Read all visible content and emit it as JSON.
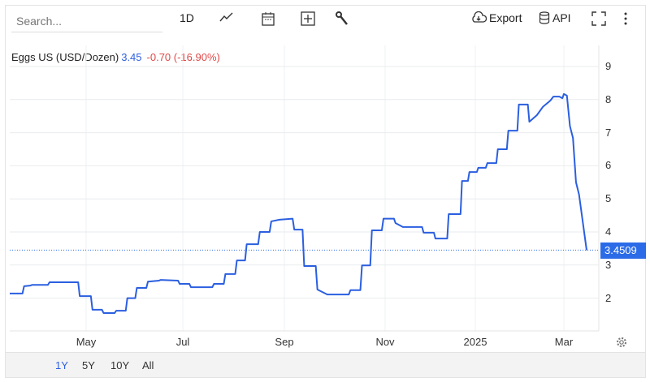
{
  "toolbar": {
    "search_placeholder": "Search...",
    "interval": "1D",
    "export_label": "Export",
    "api_label": "API",
    "icons": [
      "line-chart-icon",
      "calendar-icon",
      "add-compare-icon",
      "wrench-icon",
      "cloud-download-icon",
      "database-icon",
      "fullscreen-icon",
      "more-vert-icon"
    ]
  },
  "legend": {
    "name": "Eggs US (USD/Dozen)",
    "value": "3.45",
    "change": "-0.70 (-16.90%)"
  },
  "price_label": "3.4509",
  "ranges": [
    {
      "label": "1Y",
      "active": true
    },
    {
      "label": "5Y"
    },
    {
      "label": "10Y"
    },
    {
      "label": "All"
    }
  ],
  "colors": {
    "line": "#2b5fe0",
    "change": "#e04848",
    "price_tag": "#2b6be8"
  },
  "chart_data": {
    "type": "line",
    "series": [
      {
        "name": "Eggs US (USD/Dozen)",
        "points": [
          [
            "2024-03-14",
            2.14
          ],
          [
            "2024-03-22",
            2.14
          ],
          [
            "2024-03-23",
            2.36
          ],
          [
            "2024-03-27",
            2.38
          ],
          [
            "2024-03-28",
            2.4
          ],
          [
            "2024-04-07",
            2.4
          ],
          [
            "2024-04-08",
            2.48
          ],
          [
            "2024-04-26",
            2.48
          ],
          [
            "2024-04-27",
            2.06
          ],
          [
            "2024-05-04",
            2.06
          ],
          [
            "2024-05-05",
            1.65
          ],
          [
            "2024-05-11",
            1.65
          ],
          [
            "2024-05-12",
            1.55
          ],
          [
            "2024-05-19",
            1.55
          ],
          [
            "2024-05-20",
            1.62
          ],
          [
            "2024-05-26",
            1.62
          ],
          [
            "2024-05-27",
            2.0
          ],
          [
            "2024-06-01",
            2.0
          ],
          [
            "2024-06-02",
            2.31
          ],
          [
            "2024-06-08",
            2.31
          ],
          [
            "2024-06-09",
            2.5
          ],
          [
            "2024-06-16",
            2.53
          ],
          [
            "2024-06-17",
            2.55
          ],
          [
            "2024-06-28",
            2.53
          ],
          [
            "2024-06-29",
            2.43
          ],
          [
            "2024-07-05",
            2.43
          ],
          [
            "2024-07-06",
            2.33
          ],
          [
            "2024-07-19",
            2.33
          ],
          [
            "2024-07-20",
            2.43
          ],
          [
            "2024-07-26",
            2.43
          ],
          [
            "2024-07-27",
            2.73
          ],
          [
            "2024-08-02",
            2.73
          ],
          [
            "2024-08-03",
            3.14
          ],
          [
            "2024-08-08",
            3.14
          ],
          [
            "2024-08-09",
            3.63
          ],
          [
            "2024-08-16",
            3.63
          ],
          [
            "2024-08-17",
            4.0
          ],
          [
            "2024-08-23",
            4.0
          ],
          [
            "2024-08-24",
            4.32
          ],
          [
            "2024-08-29",
            4.37
          ],
          [
            "2024-09-06",
            4.4
          ],
          [
            "2024-09-07",
            4.07
          ],
          [
            "2024-09-12",
            4.07
          ],
          [
            "2024-09-13",
            2.97
          ],
          [
            "2024-09-20",
            2.97
          ],
          [
            "2024-09-21",
            2.26
          ],
          [
            "2024-09-27",
            2.11
          ],
          [
            "2024-10-10",
            2.11
          ],
          [
            "2024-10-11",
            2.24
          ],
          [
            "2024-10-17",
            2.24
          ],
          [
            "2024-10-18",
            2.99
          ],
          [
            "2024-10-23",
            2.99
          ],
          [
            "2024-10-24",
            4.05
          ],
          [
            "2024-10-30",
            4.05
          ],
          [
            "2024-10-31",
            4.4
          ],
          [
            "2024-11-07",
            4.4
          ],
          [
            "2024-11-08",
            4.27
          ],
          [
            "2024-11-13",
            4.15
          ],
          [
            "2024-11-26",
            4.15
          ],
          [
            "2024-11-27",
            3.98
          ],
          [
            "2024-12-04",
            3.98
          ],
          [
            "2024-12-05",
            3.8
          ],
          [
            "2024-12-13",
            3.8
          ],
          [
            "2024-12-14",
            4.54
          ],
          [
            "2024-12-22",
            4.54
          ],
          [
            "2024-12-23",
            5.54
          ],
          [
            "2024-12-27",
            5.54
          ],
          [
            "2024-12-28",
            5.81
          ],
          [
            "2025-01-02",
            5.81
          ],
          [
            "2025-01-03",
            5.94
          ],
          [
            "2025-01-08",
            5.94
          ],
          [
            "2025-01-09",
            6.08
          ],
          [
            "2025-01-15",
            6.08
          ],
          [
            "2025-01-16",
            6.5
          ],
          [
            "2025-01-22",
            6.5
          ],
          [
            "2025-01-23",
            7.06
          ],
          [
            "2025-01-29",
            7.06
          ],
          [
            "2025-01-30",
            7.85
          ],
          [
            "2025-02-05",
            7.85
          ],
          [
            "2025-02-06",
            7.33
          ],
          [
            "2025-02-11",
            7.53
          ],
          [
            "2025-02-15",
            7.78
          ],
          [
            "2025-02-20",
            7.97
          ],
          [
            "2025-02-22",
            8.09
          ],
          [
            "2025-02-26",
            8.09
          ],
          [
            "2025-02-28",
            8.04
          ],
          [
            "2025-03-01",
            8.17
          ],
          [
            "2025-03-03",
            8.12
          ],
          [
            "2025-03-05",
            7.2
          ],
          [
            "2025-03-07",
            6.84
          ],
          [
            "2025-03-09",
            5.5
          ],
          [
            "2025-03-11",
            5.13
          ],
          [
            "2025-03-16",
            3.45
          ]
        ]
      }
    ],
    "x_ticks": [
      "May",
      "Jul",
      "Sep",
      "Nov",
      "2025",
      "Mar"
    ],
    "y_ticks": [
      "9",
      "8",
      "7",
      "6",
      "5",
      "4",
      "3",
      "2"
    ],
    "ylim": [
      1,
      9.2
    ],
    "last_value_line": 3.4509,
    "grid": true
  }
}
